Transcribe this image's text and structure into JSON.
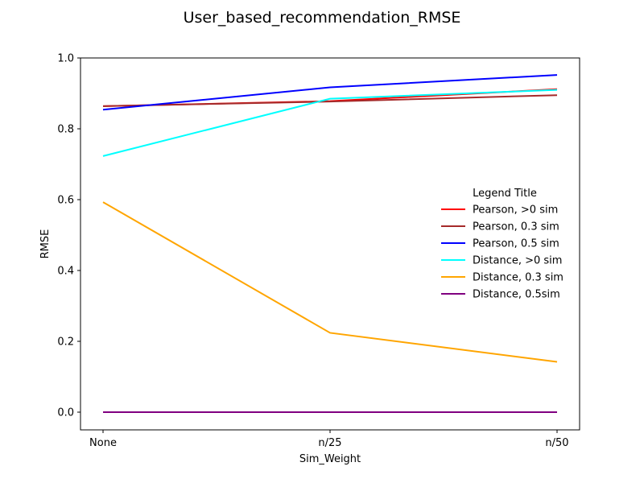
{
  "chart_data": {
    "type": "line",
    "title": "User_based_recommendation_RMSE",
    "xlabel": "Sim_Weight",
    "ylabel": "RMSE",
    "categories": [
      "None",
      "n/25",
      "n/50"
    ],
    "ylim": [
      -0.05,
      1.0
    ],
    "yticks": [
      0.0,
      0.2,
      0.4,
      0.6,
      0.8,
      1.0
    ],
    "ytick_labels": [
      "0.0",
      "0.2",
      "0.4",
      "0.6",
      "0.8",
      "1.0"
    ],
    "grid": false,
    "legend": {
      "title": "Legend Title",
      "placement": "center-right"
    },
    "series": [
      {
        "name": "Pearson, >0 sim",
        "color": "#ff0000",
        "values": [
          0.864,
          0.878,
          0.912
        ]
      },
      {
        "name": "Pearson, 0.3 sim",
        "color": "#a52a2a",
        "values": [
          0.864,
          0.877,
          0.895
        ]
      },
      {
        "name": "Pearson, 0.5 sim",
        "color": "#0000ff",
        "values": [
          0.854,
          0.917,
          0.952
        ]
      },
      {
        "name": "Distance, >0 sim",
        "color": "#00ffff",
        "values": [
          0.723,
          0.885,
          0.91
        ]
      },
      {
        "name": "Distance, 0.3 sim",
        "color": "#ffa500",
        "values": [
          0.593,
          0.224,
          0.142
        ]
      },
      {
        "name": "Distance, 0.5sim",
        "color": "#800080",
        "values": [
          0.0,
          0.0,
          0.0
        ]
      }
    ]
  }
}
